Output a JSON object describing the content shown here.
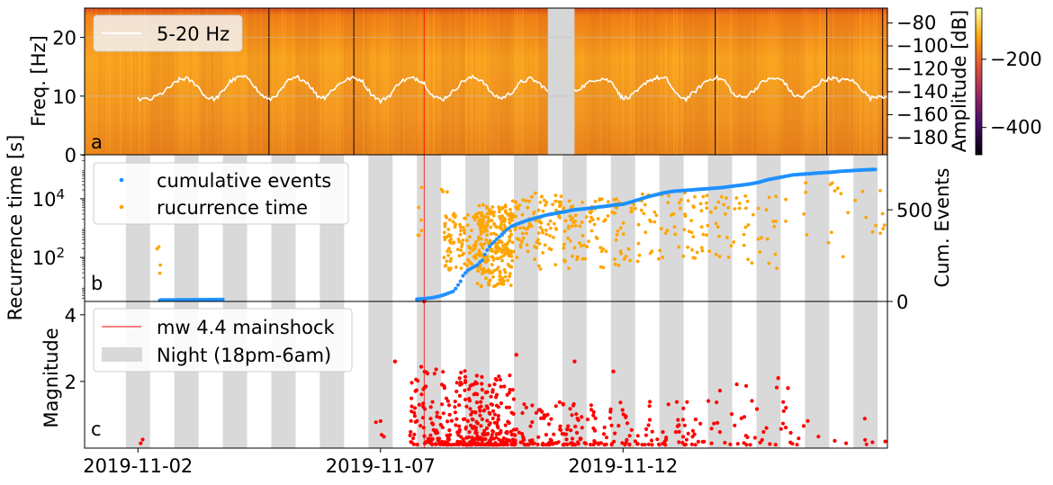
{
  "chart_data": [
    {
      "type": "heatmap",
      "panel_label": "a",
      "ylabel": "Freq. [Hz]",
      "ylim": [
        0,
        25
      ],
      "yticks": [
        0,
        10,
        20
      ],
      "legend": [
        {
          "name": "5-20 Hz",
          "color": "#ffffff"
        }
      ],
      "legend_position": "top-left",
      "grid": true,
      "colorbar": {
        "label": "Amplitude [dB]",
        "ticks": [
          -200,
          -400
        ],
        "range": [
          -480,
          -50
        ],
        "colors": [
          "#000004",
          "#420a68",
          "#932667",
          "#dd513a",
          "#fca50a",
          "#fcffa4"
        ]
      },
      "freq_axis_right": {
        "ticks": [
          -80,
          -100,
          -120,
          -140,
          -160,
          -180
        ],
        "range": [
          -195,
          -67
        ]
      },
      "gap_days": [
        8.45,
        9.0
      ],
      "series": [
        {
          "name": "5-20 Hz",
          "x_days": [
            0,
            0.25,
            0.5,
            0.7,
            0.85,
            1.0,
            1.2,
            1.4,
            1.6,
            1.75,
            1.9,
            2.1,
            2.3,
            2.5,
            2.7,
            2.9,
            3.1,
            3.3,
            3.5,
            3.7,
            3.85,
            4.0,
            4.2,
            4.4,
            4.6,
            4.8,
            5.0,
            5.2,
            5.4,
            5.6,
            5.75,
            5.9,
            6.1,
            6.3,
            6.5,
            6.7,
            6.9,
            7.1,
            7.3,
            7.5,
            7.7,
            7.9,
            8.1,
            8.3,
            8.45
          ],
          "values": [
            9.5,
            9.4,
            10.5,
            11.8,
            12.8,
            13.0,
            12.0,
            9.8,
            9.5,
            10.8,
            12.5,
            13.3,
            13.0,
            10.5,
            9.3,
            10.5,
            12.6,
            13.2,
            12.3,
            10.0,
            9.8,
            11.0,
            12.4,
            13.1,
            12.8,
            10.5,
            9.1,
            10.2,
            12.5,
            13.0,
            13.0,
            12.2,
            9.8,
            9.5,
            10.8,
            12.6,
            13.2,
            12.7,
            10.3,
            9.6,
            10.6,
            12.4,
            13.0,
            12.0,
            10.8
          ]
        },
        {
          "name": "5-20 Hz",
          "x_days": [
            9.0,
            9.2,
            9.4,
            9.6,
            9.8,
            9.95,
            10.1,
            10.3,
            10.5,
            10.7,
            10.9,
            11.1,
            11.3,
            11.5,
            11.7,
            11.9,
            12.1,
            12.3,
            12.5,
            12.7,
            12.9,
            13.1,
            13.3,
            13.5,
            13.7,
            13.9,
            14.1,
            14.3,
            14.45,
            14.7,
            14.9,
            15.1,
            15.3,
            15.45
          ],
          "values": [
            10.8,
            11.8,
            12.8,
            13.0,
            12.2,
            9.9,
            9.6,
            10.8,
            12.6,
            13.1,
            12.9,
            10.2,
            9.5,
            10.9,
            12.5,
            13.2,
            12.6,
            10.0,
            9.8,
            11.0,
            12.6,
            13.0,
            12.7,
            10.2,
            9.8,
            11.2,
            12.6,
            13.1,
            12.7,
            12.8,
            11.4,
            9.6,
            10.2,
            9.6
          ]
        }
      ]
    },
    {
      "type": "scatter",
      "panel_label": "b",
      "ylabel": "Recurrence time [s]",
      "y2label": "Cum. Events",
      "yscale": "log",
      "ylim_log10": [
        0.5,
        5.5
      ],
      "yticks": [
        {
          "value": 100,
          "label": "10^2"
        },
        {
          "value": 10000,
          "label": "10^4"
        }
      ],
      "y2lim": [
        0,
        800
      ],
      "y2ticks": [
        0,
        500
      ],
      "legend_position": "top-left",
      "series": [
        {
          "name": "cumulative events",
          "color": "#1e90ff",
          "x_days": [
            0.45,
            0.48,
            1.0,
            1.7,
            1.75,
            5.75,
            5.9,
            6.0,
            6.1,
            6.2,
            6.3,
            6.4,
            6.5,
            6.55,
            6.6,
            6.65,
            6.7,
            6.8,
            6.9,
            7.0,
            7.05,
            7.1,
            7.15,
            7.2,
            7.25,
            7.3,
            7.4,
            7.5,
            7.6,
            7.7,
            7.8,
            7.9,
            8.0,
            8.2,
            8.4,
            8.6,
            8.8,
            9.0,
            9.2,
            9.4,
            9.6,
            9.8,
            10.0,
            10.2,
            10.5,
            10.8,
            11.0,
            11.5,
            12.0,
            12.3,
            12.6,
            12.8,
            13.0,
            13.2,
            13.5,
            14.0,
            14.3,
            14.5,
            14.8,
            15.0,
            15.2
          ],
          "values": [
            6,
            8,
            9,
            10,
            11,
            12,
            15,
            18,
            22,
            28,
            35,
            45,
            55,
            70,
            90,
            110,
            140,
            170,
            185,
            200,
            215,
            225,
            255,
            280,
            300,
            315,
            340,
            365,
            390,
            410,
            420,
            430,
            440,
            455,
            470,
            480,
            490,
            500,
            505,
            512,
            518,
            525,
            530,
            545,
            570,
            590,
            600,
            610,
            620,
            630,
            640,
            650,
            665,
            675,
            690,
            700,
            705,
            710,
            715,
            718,
            720
          ]
        },
        {
          "name": "rucurrence time",
          "color": "#ffa500",
          "clusters": [
            {
              "x_days": [
                0.35,
                0.5
              ],
              "logy": [
                1.3,
                2.5
              ],
              "n": 4
            },
            {
              "x_days": [
                1.75,
                1.85
              ],
              "logy": [
                5.0,
                5.2
              ],
              "n": 1
            },
            {
              "x_days": [
                5.75,
                5.85
              ],
              "logy": [
                2.0,
                4.5
              ],
              "n": 6
            },
            {
              "x_days": [
                6.2,
                6.4
              ],
              "logy": [
                4.0,
                4.4
              ],
              "n": 3
            },
            {
              "x_days": [
                6.3,
                7.1
              ],
              "logy": [
                1.5,
                3.5
              ],
              "n": 120
            },
            {
              "x_days": [
                7.0,
                7.7
              ],
              "logy": [
                1.0,
                3.8
              ],
              "n": 220
            },
            {
              "x_days": [
                7.7,
                8.8
              ],
              "logy": [
                1.5,
                4.2
              ],
              "n": 110
            },
            {
              "x_days": [
                8.8,
                10.2
              ],
              "logy": [
                1.6,
                4.0
              ],
              "n": 90
            },
            {
              "x_days": [
                10.2,
                11.8
              ],
              "logy": [
                1.8,
                4.2
              ],
              "n": 70
            },
            {
              "x_days": [
                11.8,
                13.2
              ],
              "logy": [
                1.6,
                4.1
              ],
              "n": 45
            },
            {
              "x_days": [
                13.2,
                15.4
              ],
              "logy": [
                2.0,
                4.6
              ],
              "n": 25
            }
          ]
        }
      ]
    },
    {
      "type": "scatter",
      "panel_label": "c",
      "ylabel": "Magnitude",
      "ylim": [
        0,
        4.4
      ],
      "yticks": [
        2,
        4
      ],
      "xlabels": [
        "2019-11-02",
        "2019-11-07",
        "2019-11-12"
      ],
      "xtick_days": [
        0,
        5,
        10
      ],
      "xlim_days": [
        -1.1,
        15.45
      ],
      "mainshock_day": 5.9,
      "mainshock_magnitude": 4.4,
      "night_start_day": -0.25,
      "night_length_days": 0.5,
      "night_period_days": 1.0,
      "legend_position": "top-left",
      "legend": [
        {
          "name": "mw 4.4 mainshock",
          "color": "#ff0000"
        },
        {
          "name": "Night (18pm-6am)",
          "color": "#d9d9d9"
        }
      ],
      "series": [
        {
          "name": "magnitude",
          "color": "#ff0000",
          "clusters": [
            {
              "x_days": [
                -0.1,
                0.1
              ],
              "mag": [
                0.1,
                1.0
              ],
              "n": 2
            },
            {
              "x_days": [
                4.9,
                5.1
              ],
              "mag": [
                0.3,
                1.0
              ],
              "n": 4
            },
            {
              "x_days": [
                5.6,
                6.8
              ],
              "mag": [
                0.1,
                2.5
              ],
              "n": 160
            },
            {
              "x_days": [
                6.8,
                7.8
              ],
              "mag": [
                0.1,
                2.2
              ],
              "n": 210
            },
            {
              "x_days": [
                7.8,
                9.5
              ],
              "mag": [
                0.1,
                1.4
              ],
              "n": 110
            },
            {
              "x_days": [
                9.5,
                11.5
              ],
              "mag": [
                0.1,
                1.4
              ],
              "n": 80
            },
            {
              "x_days": [
                11.5,
                13.5
              ],
              "mag": [
                0.1,
                2.0
              ],
              "n": 45
            },
            {
              "x_days": [
                13.5,
                15.5
              ],
              "mag": [
                0.1,
                1.0
              ],
              "n": 12
            }
          ],
          "notable": [
            {
              "x_day": 5.9,
              "mag": 4.4
            },
            {
              "x_day": 5.3,
              "mag": 2.6
            },
            {
              "x_day": 7.8,
              "mag": 2.8
            },
            {
              "x_day": 9.0,
              "mag": 2.6
            },
            {
              "x_day": 9.8,
              "mag": 2.3
            },
            {
              "x_day": 13.2,
              "mag": 2.1
            },
            {
              "x_day": 13.4,
              "mag": 1.8
            }
          ]
        }
      ]
    }
  ]
}
